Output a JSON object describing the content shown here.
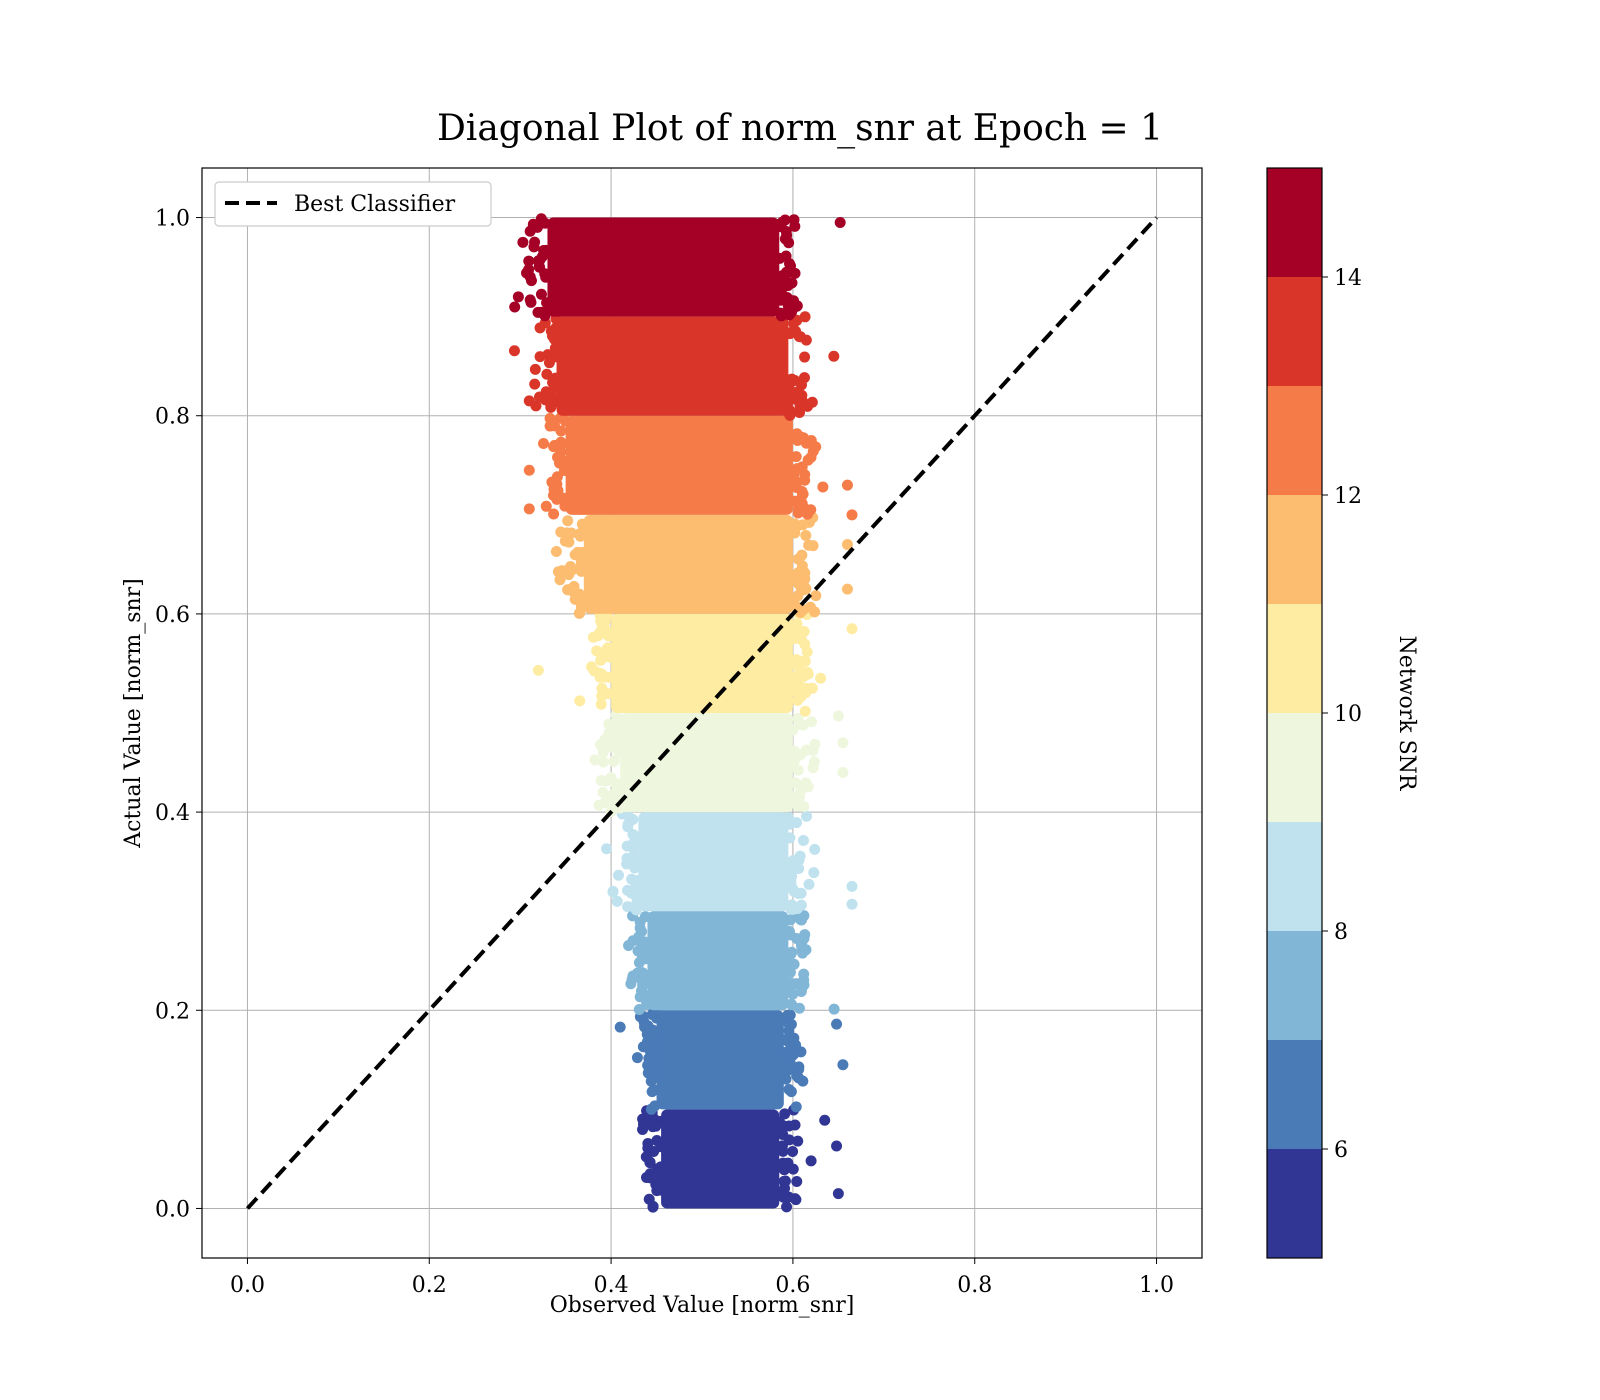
{
  "chart_data": {
    "type": "scatter",
    "title": "Diagonal Plot of norm_snr at Epoch = 1",
    "xlabel": "Observed Value [norm_snr]",
    "ylabel": "Actual Value [norm_snr]",
    "xlim": [
      -0.05,
      1.05
    ],
    "ylim": [
      -0.05,
      1.05
    ],
    "xticks": [
      "0.0",
      "0.2",
      "0.4",
      "0.6",
      "0.8",
      "1.0"
    ],
    "yticks": [
      "0.0",
      "0.2",
      "0.4",
      "0.6",
      "0.8",
      "1.0"
    ],
    "grid": true,
    "legend": {
      "position": "top-left",
      "entries": [
        "Best Classifier"
      ]
    },
    "reference_line": {
      "style": "dashed",
      "color": "#000000",
      "x": [
        0.0,
        1.0
      ],
      "y": [
        0.0,
        1.0
      ]
    },
    "colorbar": {
      "label": "Network SNR",
      "range": [
        5,
        15
      ],
      "ticks": [
        "6",
        "8",
        "10",
        "12",
        "14"
      ],
      "tick_values": [
        6,
        8,
        10,
        12,
        14
      ],
      "colors": [
        "#313695",
        "#4a7bb7",
        "#82b6d6",
        "#bfe2ee",
        "#eef7dd",
        "#feeca2",
        "#fdbd70",
        "#f57c48",
        "#d93529",
        "#a50026"
      ]
    },
    "bands": [
      {
        "snr": [
          5,
          6
        ],
        "y_range": [
          0.0,
          0.1
        ],
        "x_core": [
          0.455,
          0.585
        ],
        "color": "#313695"
      },
      {
        "snr": [
          6,
          7
        ],
        "y_range": [
          0.1,
          0.2
        ],
        "x_core": [
          0.45,
          0.59
        ],
        "color": "#4a7bb7"
      },
      {
        "snr": [
          7,
          8
        ],
        "y_range": [
          0.2,
          0.3
        ],
        "x_core": [
          0.44,
          0.595
        ],
        "color": "#82b6d6"
      },
      {
        "snr": [
          8,
          9
        ],
        "y_range": [
          0.3,
          0.4
        ],
        "x_core": [
          0.43,
          0.595
        ],
        "color": "#bfe2ee"
      },
      {
        "snr": [
          9,
          10
        ],
        "y_range": [
          0.4,
          0.5
        ],
        "x_core": [
          0.41,
          0.6
        ],
        "color": "#eef7dd"
      },
      {
        "snr": [
          10,
          11
        ],
        "y_range": [
          0.5,
          0.6
        ],
        "x_core": [
          0.4,
          0.6
        ],
        "color": "#feeca2"
      },
      {
        "snr": [
          11,
          12
        ],
        "y_range": [
          0.6,
          0.7
        ],
        "x_core": [
          0.37,
          0.6
        ],
        "color": "#fdbd70"
      },
      {
        "snr": [
          12,
          13
        ],
        "y_range": [
          0.7,
          0.8
        ],
        "x_core": [
          0.35,
          0.6
        ],
        "color": "#f57c48"
      },
      {
        "snr": [
          13,
          14
        ],
        "y_range": [
          0.8,
          0.9
        ],
        "x_core": [
          0.34,
          0.595
        ],
        "color": "#d93529"
      },
      {
        "snr": [
          14,
          15
        ],
        "y_range": [
          0.9,
          1.0
        ],
        "x_core": [
          0.33,
          0.585
        ],
        "color": "#a50026"
      }
    ],
    "outliers": [
      {
        "x": 0.41,
        "y": 0.183,
        "band": 1
      },
      {
        "x": 0.62,
        "y": 0.048,
        "band": 0
      },
      {
        "x": 0.65,
        "y": 0.015,
        "band": 0
      },
      {
        "x": 0.648,
        "y": 0.063,
        "band": 0
      },
      {
        "x": 0.635,
        "y": 0.089,
        "band": 0
      },
      {
        "x": 0.655,
        "y": 0.145,
        "band": 1
      },
      {
        "x": 0.648,
        "y": 0.186,
        "band": 1
      },
      {
        "x": 0.6,
        "y": 0.302,
        "band": 3
      },
      {
        "x": 0.665,
        "y": 0.325,
        "band": 3
      },
      {
        "x": 0.665,
        "y": 0.307,
        "band": 3
      },
      {
        "x": 0.395,
        "y": 0.363,
        "band": 3
      },
      {
        "x": 0.32,
        "y": 0.543,
        "band": 5
      },
      {
        "x": 0.655,
        "y": 0.47,
        "band": 4
      },
      {
        "x": 0.65,
        "y": 0.497,
        "band": 4
      },
      {
        "x": 0.655,
        "y": 0.44,
        "band": 4
      },
      {
        "x": 0.665,
        "y": 0.585,
        "band": 5
      },
      {
        "x": 0.66,
        "y": 0.625,
        "band": 6
      },
      {
        "x": 0.66,
        "y": 0.67,
        "band": 6
      },
      {
        "x": 0.665,
        "y": 0.7,
        "band": 7
      },
      {
        "x": 0.66,
        "y": 0.73,
        "band": 7
      },
      {
        "x": 0.31,
        "y": 0.706,
        "band": 7
      },
      {
        "x": 0.31,
        "y": 0.745,
        "band": 7
      },
      {
        "x": 0.645,
        "y": 0.86,
        "band": 8
      },
      {
        "x": 0.31,
        "y": 0.815,
        "band": 8
      },
      {
        "x": 0.652,
        "y": 0.995,
        "band": 9
      },
      {
        "x": 0.298,
        "y": 0.92,
        "band": 9
      },
      {
        "x": 0.303,
        "y": 0.975,
        "band": 9
      }
    ]
  }
}
